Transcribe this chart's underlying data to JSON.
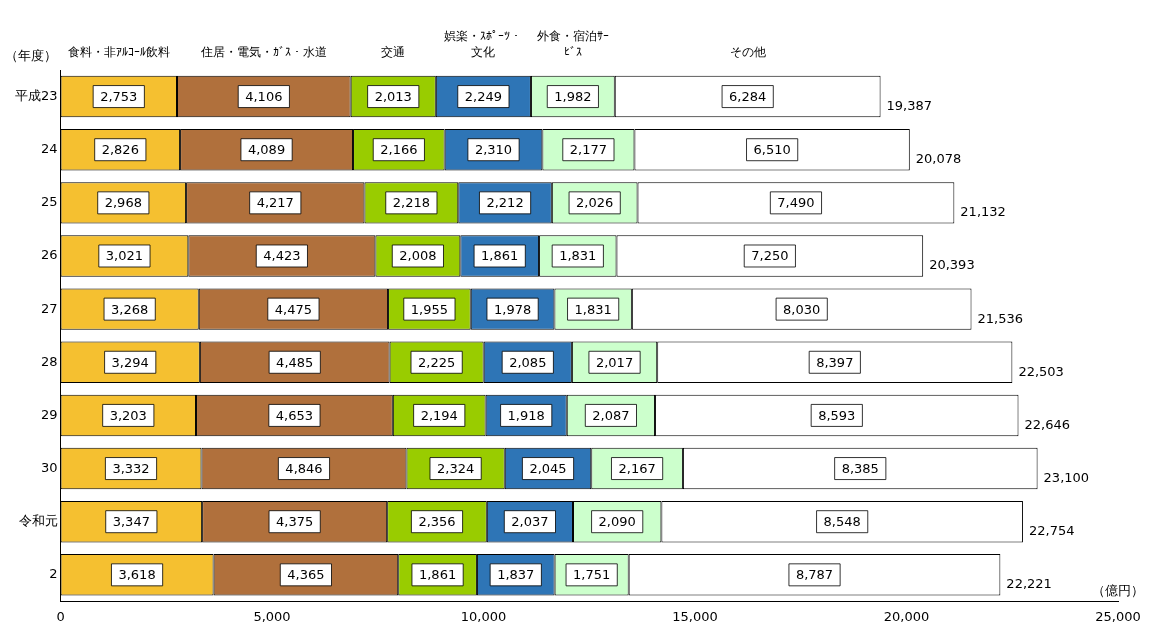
{
  "chart_data": {
    "type": "bar",
    "orientation": "horizontal",
    "stacked": true,
    "grid": false,
    "ylabel": "（年度）",
    "xlabel": "（億円）",
    "categories": [
      "平成23",
      "24",
      "25",
      "26",
      "27",
      "28",
      "29",
      "30",
      "令和元",
      "2"
    ],
    "series": [
      {
        "name": "食料・非ｱﾙｺｰﾙ飲料",
        "color": "#f5c030",
        "values": [
          2753,
          2826,
          2968,
          3021,
          3268,
          3294,
          3203,
          3332,
          3347,
          3618
        ],
        "value_labels": [
          "2,753",
          "2,826",
          "2,968",
          "3,021",
          "3,268",
          "3,294",
          "3,203",
          "3,332",
          "3,347",
          "3,618"
        ]
      },
      {
        "name": "住居・電気・ｶﾞｽ・水道",
        "color": "#b0703c",
        "values": [
          4106,
          4089,
          4217,
          4423,
          4475,
          4485,
          4653,
          4846,
          4375,
          4365
        ],
        "value_labels": [
          "4,106",
          "4,089",
          "4,217",
          "4,423",
          "4,475",
          "4,485",
          "4,653",
          "4,846",
          "4,375",
          "4,365"
        ]
      },
      {
        "name": "交通",
        "color": "#99cc00",
        "values": [
          2013,
          2166,
          2218,
          2008,
          1955,
          2225,
          2194,
          2324,
          2356,
          1861
        ],
        "value_labels": [
          "2,013",
          "2,166",
          "2,218",
          "2,008",
          "1,955",
          "2,225",
          "2,194",
          "2,324",
          "2,356",
          "1,861"
        ]
      },
      {
        "name": "娯楽・ｽﾎﾟｰﾂ・文化",
        "color": "#2e75b6",
        "values": [
          2249,
          2310,
          2212,
          1861,
          1978,
          2085,
          1918,
          2045,
          2037,
          1837
        ],
        "value_labels": [
          "2,249",
          "2,310",
          "2,212",
          "1,861",
          "1,978",
          "2,085",
          "1,918",
          "2,045",
          "2,037",
          "1,837"
        ]
      },
      {
        "name": "外食・宿泊ｻｰﾋﾞｽ",
        "color": "#ccffcc",
        "values": [
          1982,
          2177,
          2026,
          1831,
          1831,
          2017,
          2087,
          2167,
          2090,
          1751
        ],
        "value_labels": [
          "1,982",
          "2,177",
          "2,026",
          "1,831",
          "1,831",
          "2,017",
          "2,087",
          "2,167",
          "2,090",
          "1,751"
        ]
      },
      {
        "name": "その他",
        "color": "#ffffff",
        "values": [
          6284,
          6510,
          7490,
          7250,
          8030,
          8397,
          8593,
          8385,
          8548,
          8787
        ],
        "value_labels": [
          "6,284",
          "6,510",
          "7,490",
          "7,250",
          "8,030",
          "8,397",
          "8,593",
          "8,385",
          "8,548",
          "8,787"
        ]
      }
    ],
    "totals": [
      "19,387",
      "20,078",
      "21,132",
      "20,393",
      "21,536",
      "22,503",
      "22,646",
      "23,100",
      "22,754",
      "22,221"
    ],
    "xlim": [
      0,
      25000
    ],
    "xticks": [
      0,
      {
        "value": 5000,
        "label": "5,000"
      },
      {
        "value": 10000,
        "label": "10,000"
      },
      {
        "value": 15000,
        "label": "15,000"
      },
      {
        "value": 20000,
        "label": "20,000"
      },
      {
        "value": 25000,
        "label": "25,000"
      }
    ]
  }
}
